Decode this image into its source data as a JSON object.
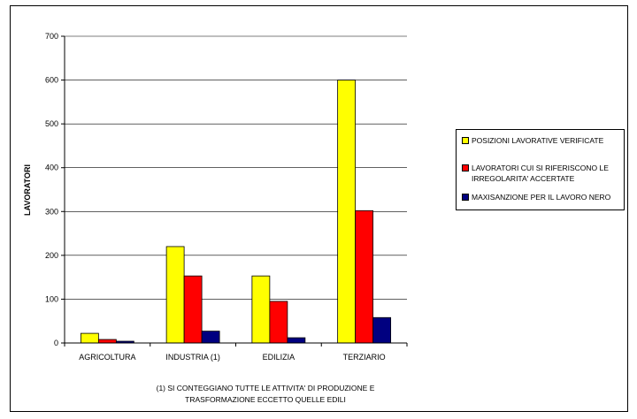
{
  "chart_data": {
    "type": "bar",
    "categories": [
      "AGRICOLTURA",
      "INDUSTRIA (1)",
      "EDILIZIA",
      "TERZIARIO"
    ],
    "series": [
      {
        "name": "POSIZIONI LAVORATIVE VERIFICATE",
        "values": [
          22,
          220,
          153,
          600
        ],
        "color": "#ffff00"
      },
      {
        "name": "LAVORATORI CUI SI RIFERISCONO LE IRREGOLARITA' ACCERTATE",
        "values": [
          8,
          153,
          95,
          302
        ],
        "color": "#ff0000"
      },
      {
        "name": "MAXISANZIONE PER IL LAVORO NERO",
        "values": [
          4,
          27,
          12,
          58
        ],
        "color": "#000080"
      }
    ],
    "ylabel": "LAVORATORI",
    "xlabel": "",
    "ylim": [
      0,
      700
    ],
    "yticks": [
      0,
      100,
      200,
      300,
      400,
      500,
      600,
      700
    ],
    "grid": true,
    "legend_position": "right"
  },
  "footnote": {
    "line1": "(1) SI CONTEGGIANO TUTTE LE ATTIVITA' DI PRODUZIONE E",
    "line2": "TRASFORMAZIONE ECCETTO QUELLE EDILI"
  }
}
